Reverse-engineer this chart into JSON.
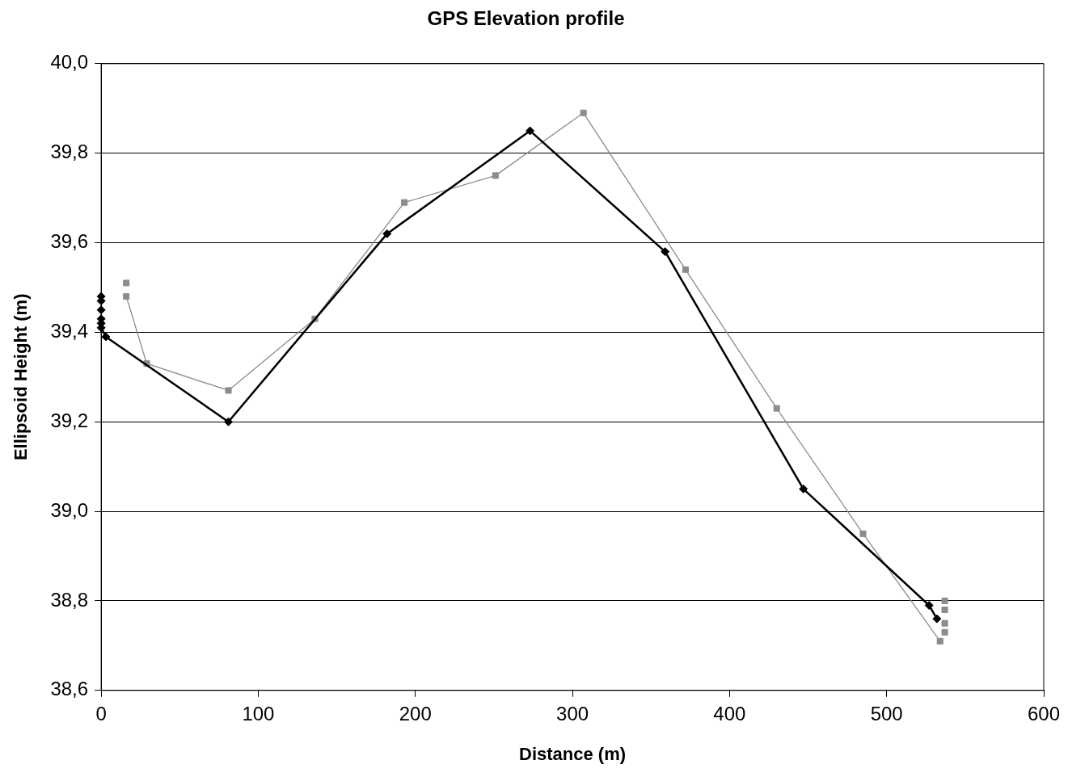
{
  "chart_data": {
    "type": "line",
    "title": "GPS Elevation profile",
    "xlabel": "Distance (m)",
    "ylabel": "Ellipsoid Height (m)",
    "xlim": [
      0,
      600
    ],
    "xticks": [
      0,
      100,
      200,
      300,
      400,
      500,
      600
    ],
    "ylim": [
      38.6,
      40.0
    ],
    "yticks": [
      {
        "value": 38.6,
        "label": "38,6"
      },
      {
        "value": 38.8,
        "label": "38,8"
      },
      {
        "value": 39.0,
        "label": "39,0"
      },
      {
        "value": 39.2,
        "label": "39,2"
      },
      {
        "value": 39.4,
        "label": "39,4"
      },
      {
        "value": 39.6,
        "label": "39,6"
      },
      {
        "value": 39.8,
        "label": "39,8"
      },
      {
        "value": 40.0,
        "label": "40,0"
      }
    ],
    "grid": "y",
    "legend": false,
    "series": [
      {
        "type": "scatter",
        "color": "#000000",
        "marker": "diamond",
        "x": [
          0,
          0,
          0,
          0,
          0
        ],
        "values": [
          39.48,
          39.47,
          39.45,
          39.43,
          39.42
        ]
      },
      {
        "color": "#000000",
        "marker": "diamond",
        "line_style": "solid",
        "x": [
          0,
          3,
          81,
          182,
          273,
          359,
          447,
          527,
          532
        ],
        "values": [
          39.41,
          39.39,
          39.2,
          39.62,
          39.85,
          39.58,
          39.05,
          38.79,
          38.76
        ]
      },
      {
        "type": "scatter",
        "color": "#8c8c8c",
        "marker": "square",
        "x": [
          16
        ],
        "values": [
          39.51
        ]
      },
      {
        "color": "#8c8c8c",
        "marker": "square",
        "line_style": "solid",
        "x": [
          16,
          29,
          81,
          136,
          193,
          251,
          307,
          372,
          430,
          485,
          534
        ],
        "values": [
          39.48,
          39.33,
          39.27,
          39.43,
          39.69,
          39.75,
          39.89,
          39.54,
          39.23,
          38.95,
          38.71
        ]
      },
      {
        "type": "scatter",
        "color": "#8c8c8c",
        "marker": "square",
        "x": [
          537,
          537,
          537,
          537
        ],
        "values": [
          38.73,
          38.75,
          38.78,
          38.8
        ]
      }
    ]
  }
}
